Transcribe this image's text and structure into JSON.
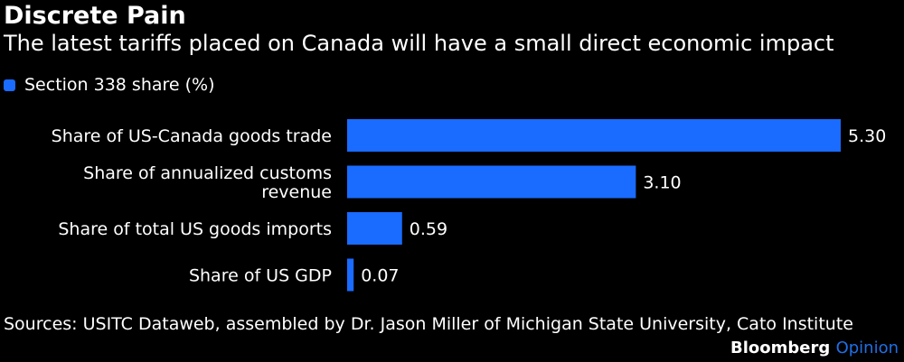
{
  "title": "Discrete Pain",
  "subtitle": "The latest tariffs placed on Canada will have a small direct economic impact",
  "legend": {
    "label": "Section 338 share (%)"
  },
  "colors": {
    "bar": "#1a6bff",
    "background": "#000000",
    "text": "#ffffff",
    "brand_accent": "#1f6fe6"
  },
  "chart_data": {
    "type": "bar",
    "orientation": "horizontal",
    "categories": [
      [
        "Share of US-Canada goods trade"
      ],
      [
        "Share of annualized customs",
        "revenue"
      ],
      [
        "Share of total US goods imports"
      ],
      [
        "Share of US GDP"
      ]
    ],
    "series": [
      {
        "name": "Section 338 share (%)",
        "values": [
          5.3,
          3.1,
          0.59,
          0.07
        ],
        "labels": [
          "5.30",
          "3.10",
          "0.59",
          "0.07"
        ]
      }
    ],
    "xlim": [
      0,
      5.3
    ],
    "grid": false,
    "legend_position": "top-left"
  },
  "source": "Sources: USITC Dataweb, assembled by Dr. Jason Miller of Michigan State University, Cato Institute",
  "brand": {
    "name": "Bloomberg",
    "suffix": "Opinion"
  }
}
